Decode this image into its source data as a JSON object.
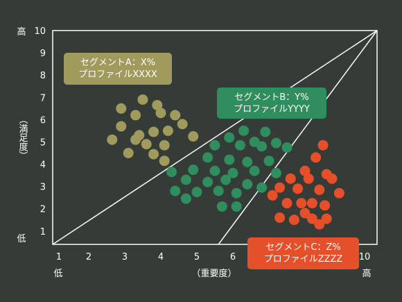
{
  "chart_data": {
    "type": "scatter",
    "xlabel": "（重要度）",
    "ylabel": "（満足度）",
    "x_low": "低",
    "x_high": "高",
    "y_low": "低",
    "y_high": "高",
    "xlim": [
      1,
      10
    ],
    "ylim": [
      0.4,
      10
    ],
    "x_ticks": [
      "1",
      "2",
      "3",
      "4",
      "5",
      "6",
      "7",
      "8",
      "9",
      "10"
    ],
    "y_ticks": [
      "1",
      "2",
      "3",
      "4",
      "5",
      "6",
      "7",
      "8",
      "9",
      "10"
    ],
    "grid": false,
    "divider_lines": [
      {
        "from": [
          1,
          0.4
        ],
        "to": [
          10,
          10
        ]
      },
      {
        "from": [
          5.6,
          0.4
        ],
        "to": [
          10,
          10
        ]
      }
    ],
    "series": [
      {
        "color": "#a09a5c",
        "label_lines": [
          "セグメントA：X%",
          "プロファイルXXXX"
        ],
        "points": [
          [
            3.5,
            6.9
          ],
          [
            2.9,
            6.5
          ],
          [
            3.9,
            6.65
          ],
          [
            3.3,
            6.2
          ],
          [
            4.0,
            6.3
          ],
          [
            4.4,
            6.2
          ],
          [
            2.9,
            5.7
          ],
          [
            4.6,
            5.8
          ],
          [
            3.4,
            5.3
          ],
          [
            3.8,
            5.45
          ],
          [
            4.2,
            5.5
          ],
          [
            2.65,
            5.1
          ],
          [
            3.3,
            5.1
          ],
          [
            4.9,
            5.25
          ],
          [
            3.6,
            4.9
          ],
          [
            4.1,
            4.85
          ],
          [
            3.1,
            4.5
          ],
          [
            3.8,
            4.45
          ],
          [
            4.1,
            4.15
          ]
        ]
      },
      {
        "color": "#2f8d5e",
        "label_lines": [
          "セグメントB：Y%",
          "プロファイルYYYY"
        ],
        "points": [
          [
            6.3,
            5.5
          ],
          [
            6.9,
            5.45
          ],
          [
            5.9,
            5.2
          ],
          [
            6.6,
            5.0
          ],
          [
            7.2,
            4.95
          ],
          [
            5.5,
            4.85
          ],
          [
            6.2,
            4.85
          ],
          [
            6.8,
            4.8
          ],
          [
            7.5,
            4.75
          ],
          [
            5.3,
            4.3
          ],
          [
            5.9,
            4.2
          ],
          [
            6.4,
            4.1
          ],
          [
            7.0,
            4.15
          ],
          [
            4.3,
            3.65
          ],
          [
            4.9,
            3.75
          ],
          [
            5.5,
            3.7
          ],
          [
            6.0,
            3.6
          ],
          [
            6.6,
            3.7
          ],
          [
            7.2,
            3.6
          ],
          [
            4.7,
            3.3
          ],
          [
            5.3,
            3.2
          ],
          [
            5.8,
            3.3
          ],
          [
            6.4,
            3.1
          ],
          [
            6.8,
            2.95
          ],
          [
            4.4,
            2.8
          ],
          [
            5.0,
            2.75
          ],
          [
            5.6,
            2.8
          ],
          [
            6.1,
            2.7
          ],
          [
            4.7,
            2.45
          ],
          [
            5.7,
            2.1
          ],
          [
            6.1,
            2.1
          ]
        ]
      },
      {
        "color": "#e5502a",
        "label_lines": [
          "セグメントC：Z%",
          "プロファイルZZZZ"
        ],
        "points": [
          [
            8.5,
            4.85
          ],
          [
            8.3,
            4.3
          ],
          [
            8.0,
            3.7
          ],
          [
            8.6,
            3.55
          ],
          [
            7.6,
            3.35
          ],
          [
            8.1,
            3.35
          ],
          [
            8.75,
            3.35
          ],
          [
            7.3,
            2.95
          ],
          [
            7.8,
            2.9
          ],
          [
            8.4,
            2.85
          ],
          [
            7.1,
            2.6
          ],
          [
            8.95,
            2.7
          ],
          [
            7.5,
            2.25
          ],
          [
            7.9,
            2.25
          ],
          [
            8.2,
            2.25
          ],
          [
            8.55,
            2.15
          ],
          [
            8.0,
            1.8
          ],
          [
            7.3,
            1.6
          ],
          [
            7.7,
            1.5
          ],
          [
            8.2,
            1.55
          ],
          [
            8.6,
            1.55
          ],
          [
            8.4,
            1.3
          ]
        ]
      }
    ]
  }
}
